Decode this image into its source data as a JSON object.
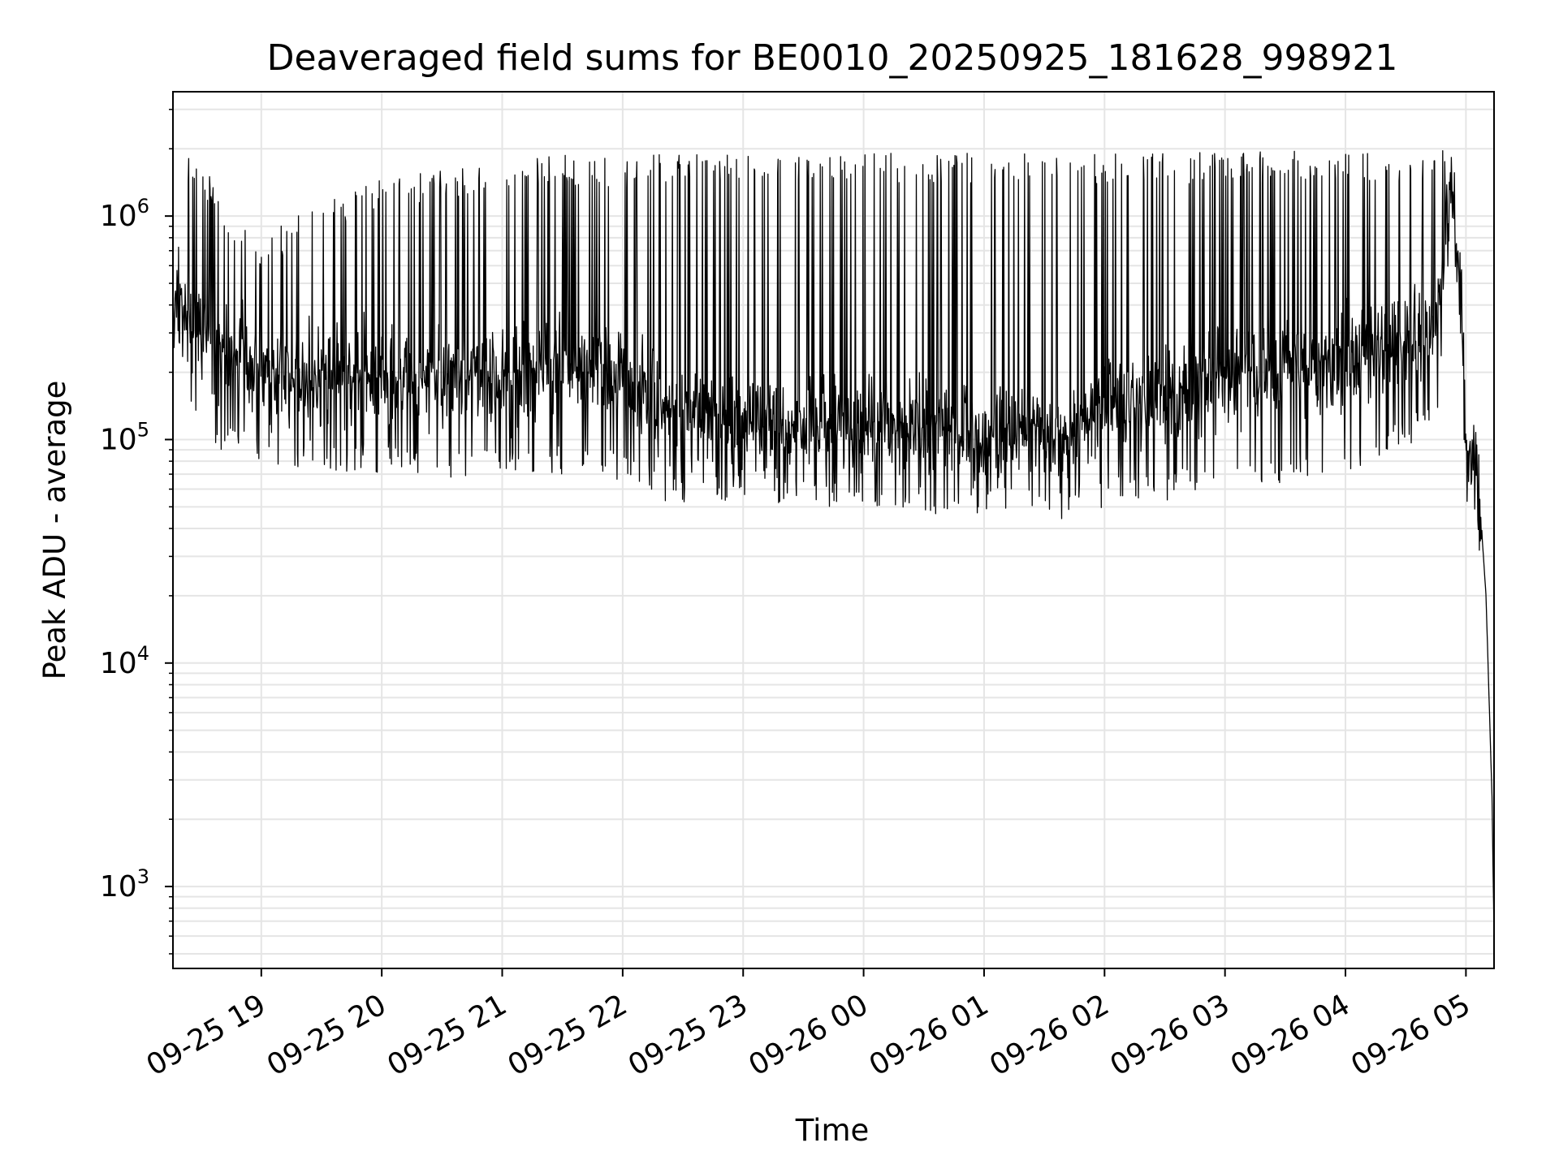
{
  "chart_data": {
    "type": "line",
    "title": "Deaveraged field sums for BE0010_20250925_181628_998921",
    "xlabel": "Time",
    "ylabel": "Peak ADU - average",
    "xscale": "time",
    "yscale": "log",
    "grid": true,
    "line_color": "#000000",
    "grid_color": "#e5e5e5",
    "xlim": [
      "2025-09-25 18:16",
      "2025-09-26 05:14"
    ],
    "ylim": [
      430,
      3600000
    ],
    "xticks": [
      {
        "value": "2025-09-25 19:00",
        "label": "09-25 19"
      },
      {
        "value": "2025-09-25 20:00",
        "label": "09-25 20"
      },
      {
        "value": "2025-09-25 21:00",
        "label": "09-25 21"
      },
      {
        "value": "2025-09-25 22:00",
        "label": "09-25 22"
      },
      {
        "value": "2025-09-25 23:00",
        "label": "09-25 23"
      },
      {
        "value": "2025-09-26 00:00",
        "label": "09-26 00"
      },
      {
        "value": "2025-09-26 01:00",
        "label": "09-26 01"
      },
      {
        "value": "2025-09-26 02:00",
        "label": "09-26 02"
      },
      {
        "value": "2025-09-26 03:00",
        "label": "09-26 03"
      },
      {
        "value": "2025-09-26 04:00",
        "label": "09-26 04"
      },
      {
        "value": "2025-09-26 05:00",
        "label": "09-26 05"
      }
    ],
    "yticks": [
      {
        "value": 1000,
        "base": "10",
        "exp": "3"
      },
      {
        "value": 10000,
        "base": "10",
        "exp": "4"
      },
      {
        "value": 100000,
        "base": "10",
        "exp": "5"
      },
      {
        "value": 1000000,
        "base": "10",
        "exp": "6"
      }
    ],
    "series": [
      {
        "envelope": [
          {
            "t": "2025-09-25 18:16",
            "base": 380000,
            "spike": 450000,
            "floor": 300000
          },
          {
            "t": "2025-09-25 18:20",
            "base": 420000,
            "spike": 1950000,
            "floor": 250000
          },
          {
            "t": "2025-09-25 18:30",
            "base": 300000,
            "spike": 1800000,
            "floor": 130000
          },
          {
            "t": "2025-09-25 18:45",
            "base": 220000,
            "spike": 1000000,
            "floor": 100000
          },
          {
            "t": "2025-09-25 19:00",
            "base": 200000,
            "spike": 800000,
            "floor": 95000
          },
          {
            "t": "2025-09-25 19:30",
            "base": 190000,
            "spike": 1200000,
            "floor": 90000
          },
          {
            "t": "2025-09-25 20:00",
            "base": 190000,
            "spike": 1500000,
            "floor": 85000
          },
          {
            "t": "2025-09-25 21:00",
            "base": 190000,
            "spike": 1700000,
            "floor": 80000
          },
          {
            "t": "2025-09-25 21:30",
            "base": 210000,
            "spike": 1900000,
            "floor": 85000
          },
          {
            "t": "2025-09-25 22:00",
            "base": 190000,
            "spike": 1850000,
            "floor": 80000
          },
          {
            "t": "2025-09-25 22:20",
            "base": 140000,
            "spike": 1900000,
            "floor": 65000
          },
          {
            "t": "2025-09-25 23:00",
            "base": 125000,
            "spike": 1900000,
            "floor": 62000
          },
          {
            "t": "2025-09-26 00:00",
            "base": 115000,
            "spike": 1900000,
            "floor": 58000
          },
          {
            "t": "2025-09-26 01:00",
            "base": 105000,
            "spike": 1950000,
            "floor": 55000
          },
          {
            "t": "2025-09-26 01:40",
            "base": 100000,
            "spike": 1900000,
            "floor": 52000
          },
          {
            "t": "2025-09-26 02:00",
            "base": 130000,
            "spike": 1900000,
            "floor": 60000
          },
          {
            "t": "2025-09-26 03:00",
            "base": 190000,
            "spike": 1950000,
            "floor": 70000
          },
          {
            "t": "2025-09-26 04:00",
            "base": 230000,
            "spike": 1950000,
            "floor": 85000
          },
          {
            "t": "2025-09-26 04:45",
            "base": 300000,
            "spike": 2000000,
            "floor": 130000
          },
          {
            "t": "2025-09-26 04:52",
            "base": 1500000,
            "spike": 2400000,
            "floor": 900000
          },
          {
            "t": "2025-09-26 04:58",
            "base": 450000,
            "spike": 600000,
            "floor": 300000
          },
          {
            "t": "2025-09-26 05:00",
            "base": 90000,
            "spike": 110000,
            "floor": 65000
          },
          {
            "t": "2025-09-26 05:06",
            "base": 70000,
            "spike": 90000,
            "floor": 40000
          },
          {
            "t": "2025-09-26 05:10",
            "base": 20000,
            "spike": 20000,
            "floor": 20000
          },
          {
            "t": "2025-09-26 05:13",
            "base": 2500,
            "spike": 2500,
            "floor": 2500
          },
          {
            "t": "2025-09-26 05:14",
            "base": 600,
            "spike": 600,
            "floor": 600
          }
        ]
      }
    ]
  }
}
